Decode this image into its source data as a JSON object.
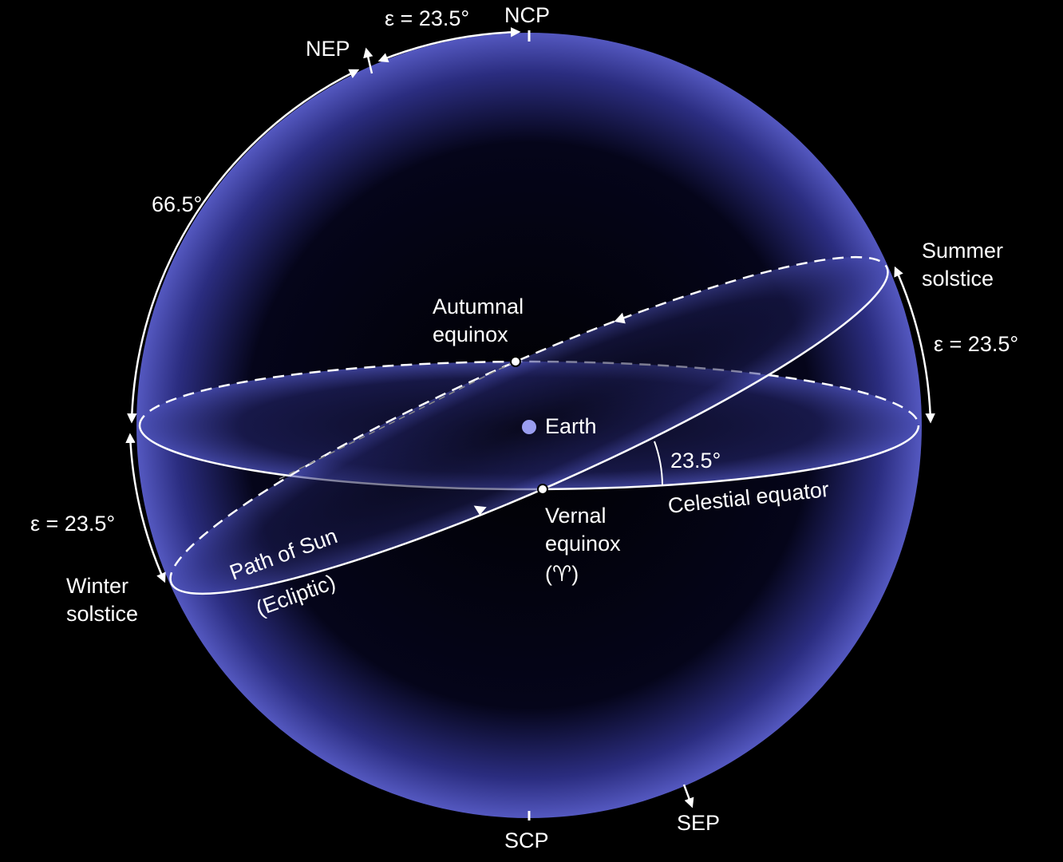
{
  "poles": {
    "ncp": "NCP",
    "nep": "NEP",
    "scp": "SCP",
    "sep": "SEP"
  },
  "angles": {
    "obliquity_top": "ε = 23.5°",
    "obliquity_right": "ε = 23.5°",
    "obliquity_left": "ε = 23.5°",
    "colatitude": "66.5°",
    "tilt": "23.5°"
  },
  "points": {
    "autumnal_equinox": [
      "Autumnal",
      "equinox"
    ],
    "summer_solstice": [
      "Summer",
      "solstice"
    ],
    "winter_solstice": [
      "Winter",
      "solstice"
    ],
    "vernal_equinox": [
      "Vernal",
      "equinox",
      "(♈)"
    ],
    "earth": "Earth"
  },
  "circles": {
    "ecliptic": [
      "Path of Sun",
      "(Ecliptic)"
    ],
    "celestial_equator": "Celestial equator"
  }
}
